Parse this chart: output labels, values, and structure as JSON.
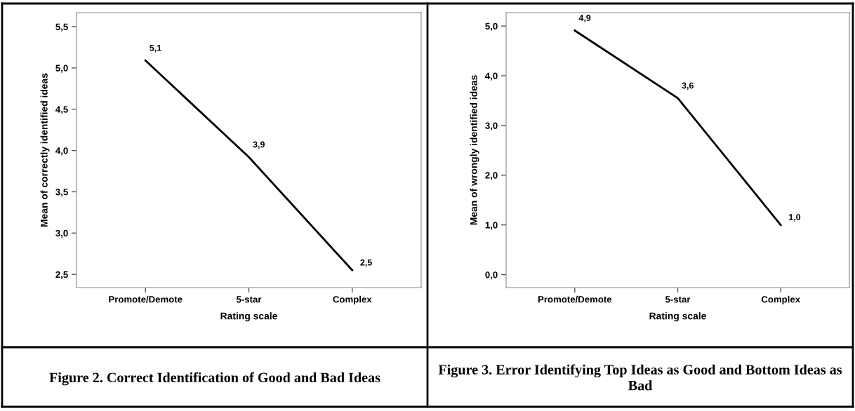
{
  "chart_data": [
    {
      "type": "line",
      "title": "Figure 2. Correct Identification of Good and Bad Ideas",
      "xlabel": "Rating scale",
      "ylabel": "Mean of correctly identified ideas",
      "categories": [
        "Promote/Demote",
        "5-star",
        "Complex"
      ],
      "series": [
        {
          "color": "#000000",
          "values": [
            5.09,
            3.92,
            2.55
          ],
          "value_labels": [
            "5,1",
            "3,9",
            "2,5"
          ]
        }
      ],
      "ylim": [
        2.34,
        5.67
      ],
      "yticks": [
        {
          "value": 2.5,
          "label": "2,5"
        },
        {
          "value": 3.0,
          "label": "3,0"
        },
        {
          "value": 3.5,
          "label": "3,5"
        },
        {
          "value": 4.0,
          "label": "4,0"
        },
        {
          "value": 4.5,
          "label": "4,5"
        },
        {
          "value": 5.0,
          "label": "5,0"
        },
        {
          "value": 5.5,
          "label": "5,5"
        }
      ],
      "grid": false,
      "legend": false,
      "marker": "none",
      "line_style": "solid"
    },
    {
      "type": "line",
      "title": "Figure 3. Error Identifying Top Ideas as Good and Bottom Ideas as Bad",
      "xlabel": "Rating scale",
      "ylabel": "Mean of wrongly identified ideas",
      "categories": [
        "Promote/Demote",
        "5-star",
        "Complex"
      ],
      "series": [
        {
          "color": "#000000",
          "values": [
            4.91,
            3.55,
            1.0
          ],
          "value_labels": [
            "4,9",
            "3,6",
            "1,0"
          ]
        }
      ],
      "ylim": [
        -0.26,
        5.27
      ],
      "yticks": [
        {
          "value": 0.0,
          "label": "0,0"
        },
        {
          "value": 1.0,
          "label": "1,0"
        },
        {
          "value": 2.0,
          "label": "2,0"
        },
        {
          "value": 3.0,
          "label": "3,0"
        },
        {
          "value": 4.0,
          "label": "4,0"
        },
        {
          "value": 5.0,
          "label": "5,0"
        }
      ],
      "grid": false,
      "legend": false,
      "marker": "none",
      "line_style": "solid"
    }
  ]
}
